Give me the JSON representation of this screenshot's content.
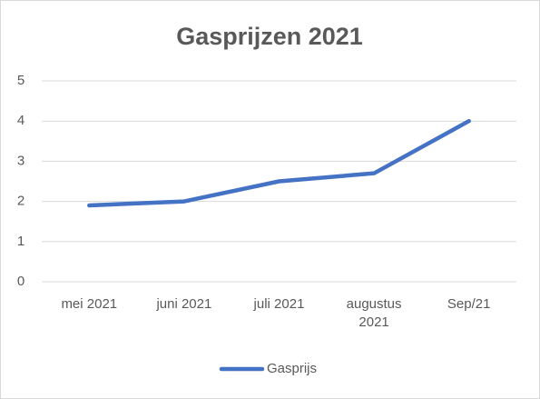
{
  "chart_data": {
    "type": "line",
    "title": "Gasprijzen 2021",
    "categories": [
      "mei 2021",
      "juni 2021",
      "juli 2021",
      "augustus 2021",
      "Sep/21"
    ],
    "series": [
      {
        "name": "Gasprijs",
        "color": "#4472c4",
        "values": [
          1.9,
          2.0,
          2.5,
          2.7,
          4.0
        ]
      }
    ],
    "ylim": [
      0,
      5
    ],
    "yticks": [
      0,
      1,
      2,
      3,
      4,
      5
    ],
    "grid": true,
    "legend": "bottom"
  }
}
